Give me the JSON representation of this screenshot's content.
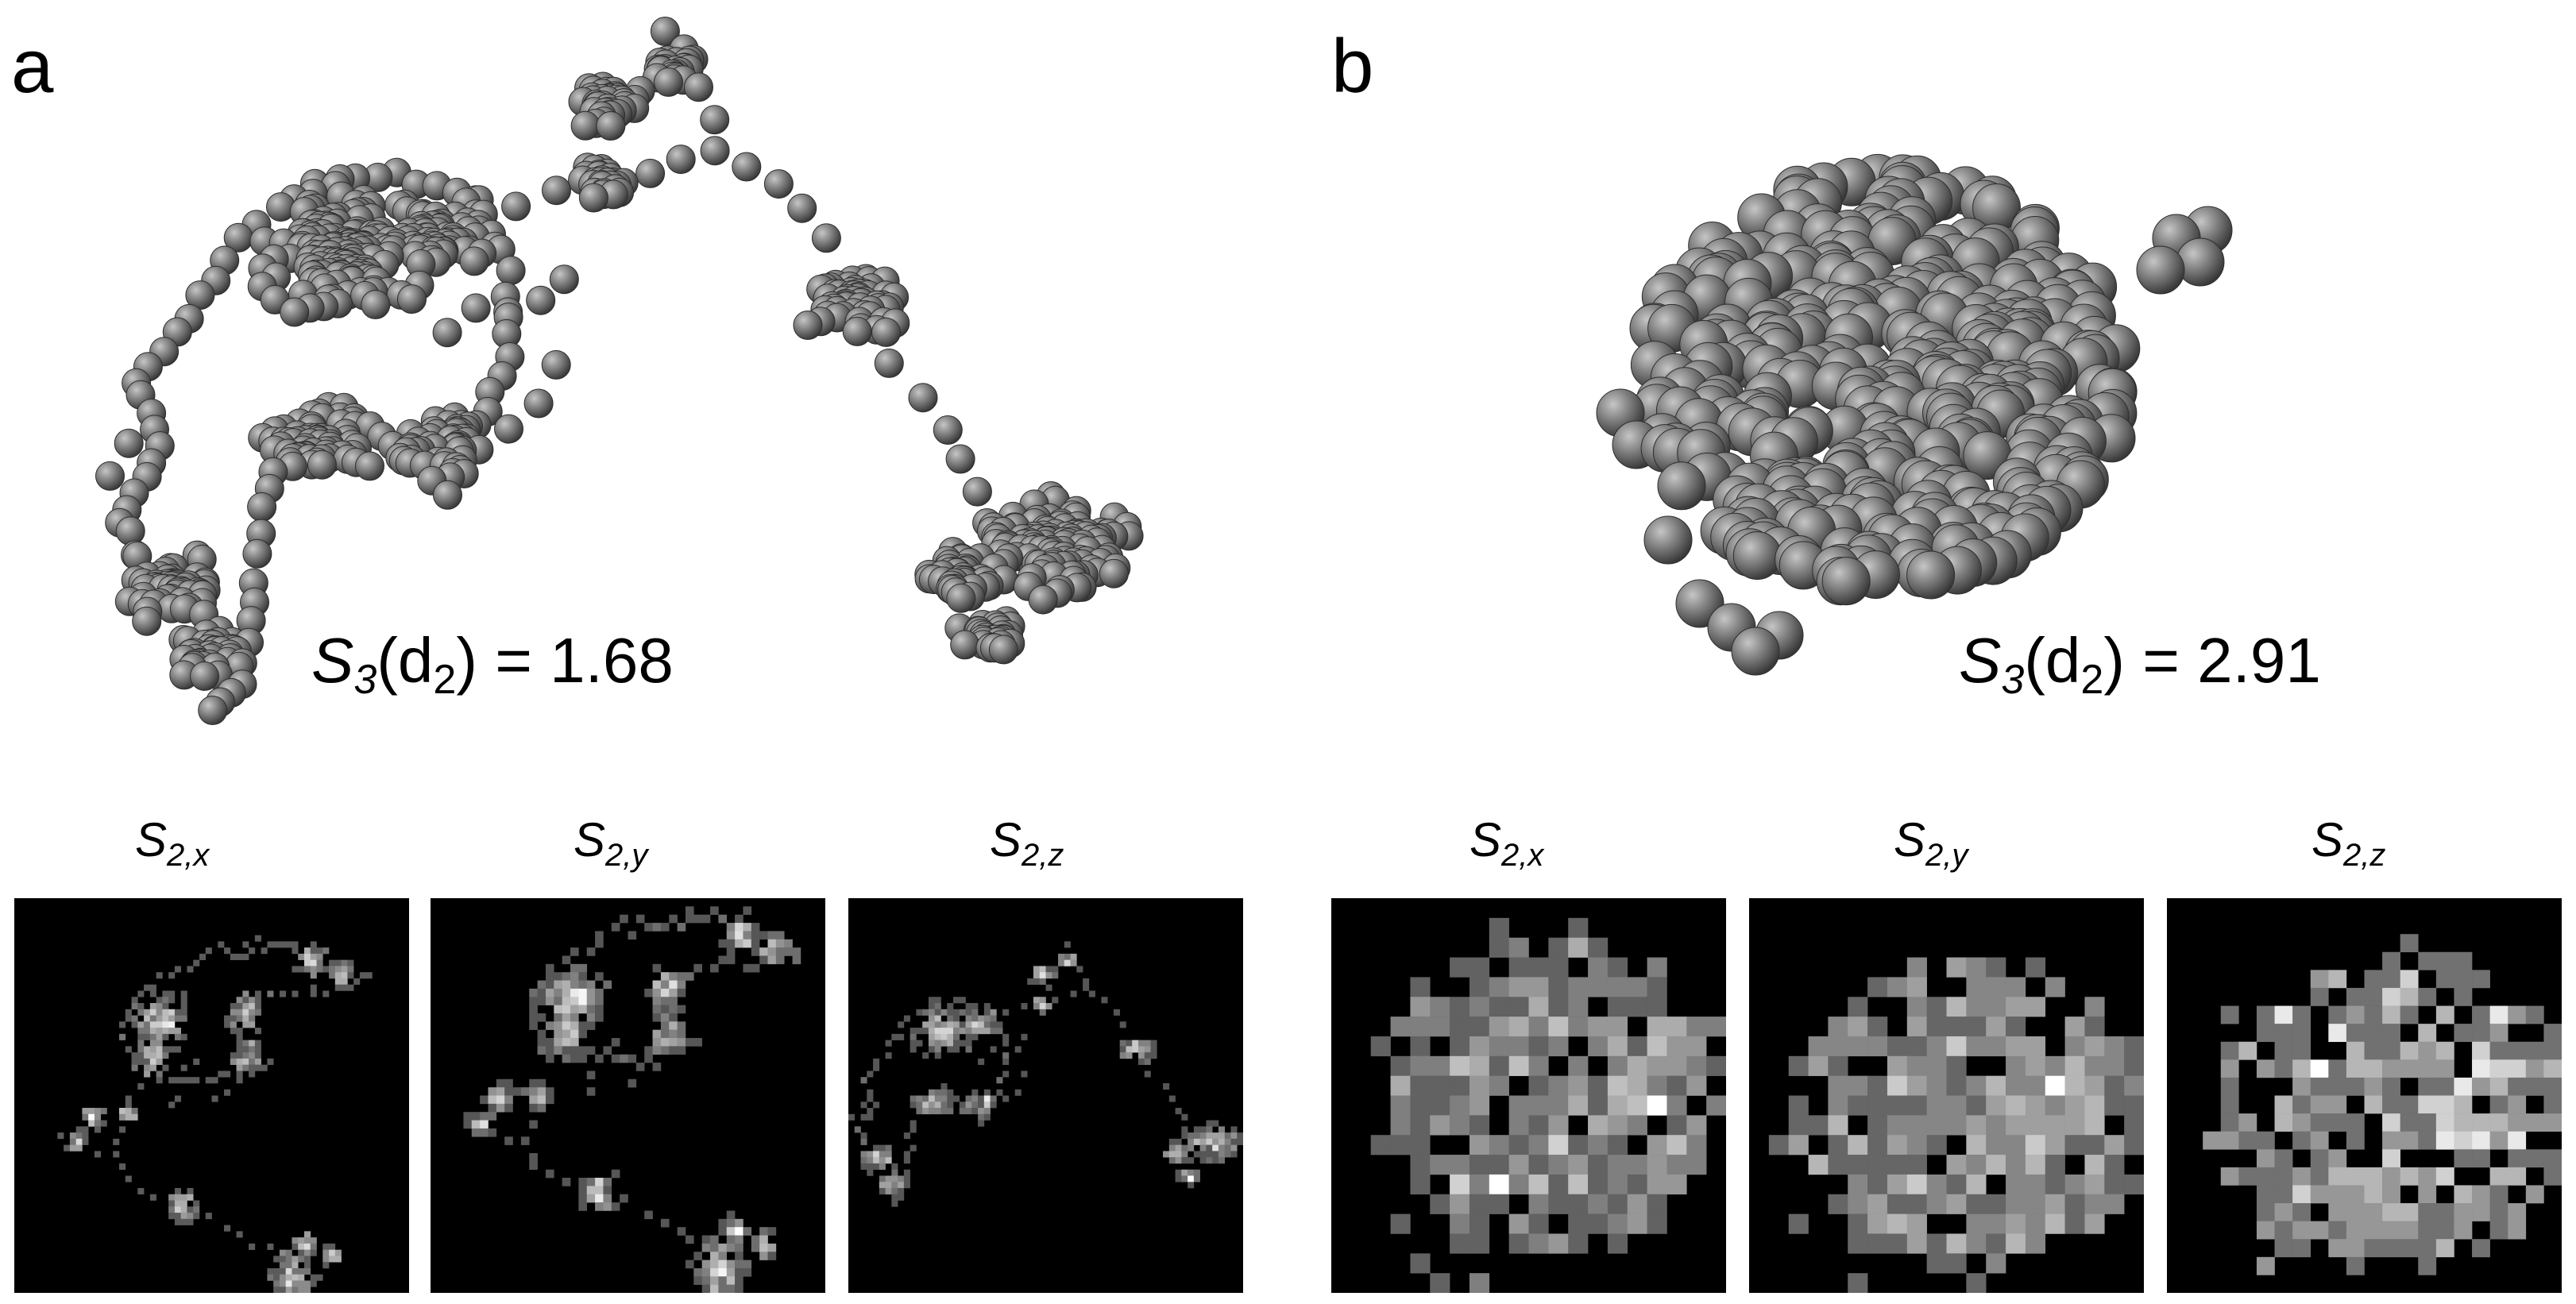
{
  "panels": [
    {
      "letter": "a",
      "metric": {
        "symbol": "S",
        "symbol_sub": "3",
        "arg": "d",
        "arg_sub": "2",
        "value": "= 1.68"
      },
      "projections": [
        {
          "label": "S",
          "sub": "2,x"
        },
        {
          "label": "S",
          "sub": "2,y"
        },
        {
          "label": "S",
          "sub": "2,z"
        }
      ]
    },
    {
      "letter": "b",
      "metric": {
        "symbol": "S",
        "symbol_sub": "3",
        "arg": "d",
        "arg_sub": "2",
        "value": "= 2.91"
      },
      "projections": [
        {
          "label": "S",
          "sub": "2,x"
        },
        {
          "label": "S",
          "sub": "2,y"
        },
        {
          "label": "S",
          "sub": "2,z"
        }
      ]
    }
  ],
  "colors": {
    "sphere_light": "#b8b8b8",
    "sphere_mid": "#7a7a7a",
    "sphere_dark": "#3c3c3c",
    "projection_bg": "#000000"
  }
}
